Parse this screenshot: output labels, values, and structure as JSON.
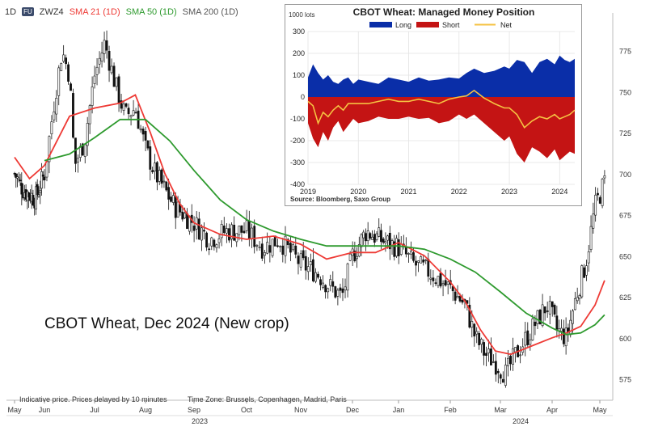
{
  "header": {
    "timeframe": "1D",
    "badge": "FU",
    "symbol": "ZWZ4",
    "sma21": "SMA 21 (1D)",
    "sma50": "SMA 50 (1D)",
    "sma200": "SMA 200 (1D)"
  },
  "annotation": "CBOT Wheat, Dec 2024 (New crop)",
  "footer_note": "Indicative price. Prices delayed by 10 minutes",
  "timezone": "Time Zone: Brussels, Copenhagen, Madrid, Paris",
  "colors": {
    "up": "#111111",
    "sma21": "#ee3a35",
    "sma50": "#2e9a2e",
    "long": "#0a2ea8",
    "short": "#c41414",
    "net": "#f5c242"
  },
  "chart_data": [
    {
      "type": "candlestick",
      "title": "",
      "x_ticks": [
        "May",
        "Jun",
        "Jul",
        "Aug",
        "Sep",
        "Oct",
        "Nov",
        "Dec",
        "Jan",
        "Feb",
        "Mar",
        "Apr",
        "May"
      ],
      "years": [
        "2023",
        "2024"
      ],
      "y_ticks": [
        575,
        600,
        625,
        650,
        675,
        700,
        725,
        750,
        775
      ],
      "ylim": [
        562,
        793
      ],
      "close_path": {
        "months": [
          0,
          0.3,
          0.7,
          1.0,
          1.2,
          1.35,
          1.5,
          1.6,
          1.8,
          2.0,
          2.2,
          2.4,
          2.6,
          2.8,
          3.0,
          3.2,
          3.4,
          3.6,
          3.8,
          4.0,
          4.3,
          4.6,
          5.0,
          5.3,
          5.6,
          6.0,
          6.3,
          6.6,
          6.8,
          7.0,
          7.3,
          7.6,
          8.0,
          8.3,
          8.6,
          9.0,
          9.3,
          9.5,
          9.7,
          9.9,
          10.1,
          10.3,
          10.5,
          10.7,
          10.9,
          11.1,
          11.3,
          11.5,
          11.7,
          11.9,
          12.1
        ],
        "values": [
          700,
          690,
          685,
          700,
          745,
          775,
          760,
          705,
          720,
          760,
          780,
          755,
          735,
          740,
          715,
          700,
          690,
          680,
          675,
          670,
          660,
          665,
          665,
          655,
          660,
          645,
          640,
          630,
          625,
          650,
          665,
          660,
          655,
          645,
          640,
          630,
          620,
          600,
          590,
          585,
          578,
          590,
          600,
          610,
          620,
          605,
          600,
          625,
          645,
          680,
          695
        ]
      },
      "series": [
        {
          "name": "SMA 21 (1D)",
          "months": [
            0,
            0.5,
            1.0,
            1.5,
            2.0,
            2.5,
            2.8,
            3.1,
            3.4,
            3.7,
            4.0,
            4.5,
            5.0,
            5.5,
            6.0,
            6.5,
            7.0,
            7.5,
            8.0,
            8.5,
            9.0,
            9.3,
            9.6,
            9.9,
            10.2,
            10.6,
            11.0,
            11.3,
            11.6,
            11.9,
            12.1
          ],
          "values": [
            710,
            697,
            705,
            735,
            740,
            743,
            748,
            725,
            700,
            682,
            670,
            663,
            660,
            662,
            657,
            648,
            652,
            652,
            658,
            650,
            634,
            622,
            605,
            592,
            590,
            595,
            600,
            603,
            607,
            620,
            635
          ]
        },
        {
          "name": "SMA 50 (1D)",
          "months": [
            1.0,
            1.5,
            2.0,
            2.5,
            3.0,
            3.5,
            4.0,
            4.5,
            5.0,
            5.5,
            6.0,
            6.5,
            7.0,
            7.5,
            8.0,
            8.5,
            9.0,
            9.5,
            10.0,
            10.5,
            11.0,
            11.3,
            11.6,
            11.9,
            12.1
          ],
          "values": [
            708,
            712,
            722,
            733,
            733,
            720,
            702,
            684,
            672,
            665,
            660,
            656,
            656,
            656,
            656,
            654,
            648,
            640,
            628,
            615,
            606,
            602,
            603,
            608,
            614
          ]
        }
      ]
    },
    {
      "type": "area",
      "title": "CBOT Wheat: Managed Money Position",
      "unit_label": "1000 lots",
      "source": "Source: Bloomberg, Saxo Group",
      "x_ticks": [
        "2019",
        "2020",
        "2021",
        "2022",
        "2023",
        "2024"
      ],
      "y_ticks": [
        300,
        200,
        100,
        0,
        -100,
        -200,
        -300,
        -400
      ],
      "ylim": [
        -400,
        300
      ],
      "legend": [
        "Long",
        "Short",
        "Net"
      ],
      "legend_placement": "top",
      "x": [
        2019.0,
        2019.1,
        2019.2,
        2019.3,
        2019.4,
        2019.5,
        2019.6,
        2019.7,
        2019.8,
        2019.9,
        2020.0,
        2020.2,
        2020.4,
        2020.6,
        2020.8,
        2021.0,
        2021.2,
        2021.4,
        2021.6,
        2021.8,
        2022.0,
        2022.15,
        2022.3,
        2022.5,
        2022.7,
        2022.9,
        2023.0,
        2023.15,
        2023.3,
        2023.45,
        2023.6,
        2023.75,
        2023.9,
        2024.0,
        2024.1,
        2024.2,
        2024.3
      ],
      "series": [
        {
          "name": "Long",
          "values": [
            90,
            150,
            110,
            80,
            100,
            70,
            60,
            80,
            90,
            60,
            80,
            70,
            60,
            90,
            80,
            70,
            90,
            75,
            80,
            90,
            85,
            110,
            130,
            110,
            120,
            140,
            130,
            170,
            160,
            110,
            160,
            175,
            150,
            190,
            170,
            160,
            175
          ]
        },
        {
          "name": "Short",
          "values": [
            -120,
            -190,
            -230,
            -160,
            -200,
            -140,
            -110,
            -160,
            -130,
            -100,
            -120,
            -110,
            -90,
            -100,
            -100,
            -90,
            -100,
            -95,
            -120,
            -110,
            -80,
            -100,
            -80,
            -120,
            -160,
            -200,
            -180,
            -260,
            -300,
            -230,
            -250,
            -280,
            -240,
            -290,
            -270,
            -250,
            -260
          ]
        },
        {
          "name": "Net",
          "values": [
            -20,
            -40,
            -120,
            -70,
            -90,
            -60,
            -40,
            -60,
            -30,
            -30,
            -30,
            -30,
            -20,
            -10,
            -20,
            -20,
            -10,
            -20,
            -30,
            -10,
            0,
            5,
            30,
            -5,
            -30,
            -50,
            -50,
            -80,
            -140,
            -110,
            -90,
            -100,
            -80,
            -100,
            -90,
            -80,
            -60
          ]
        }
      ]
    }
  ]
}
